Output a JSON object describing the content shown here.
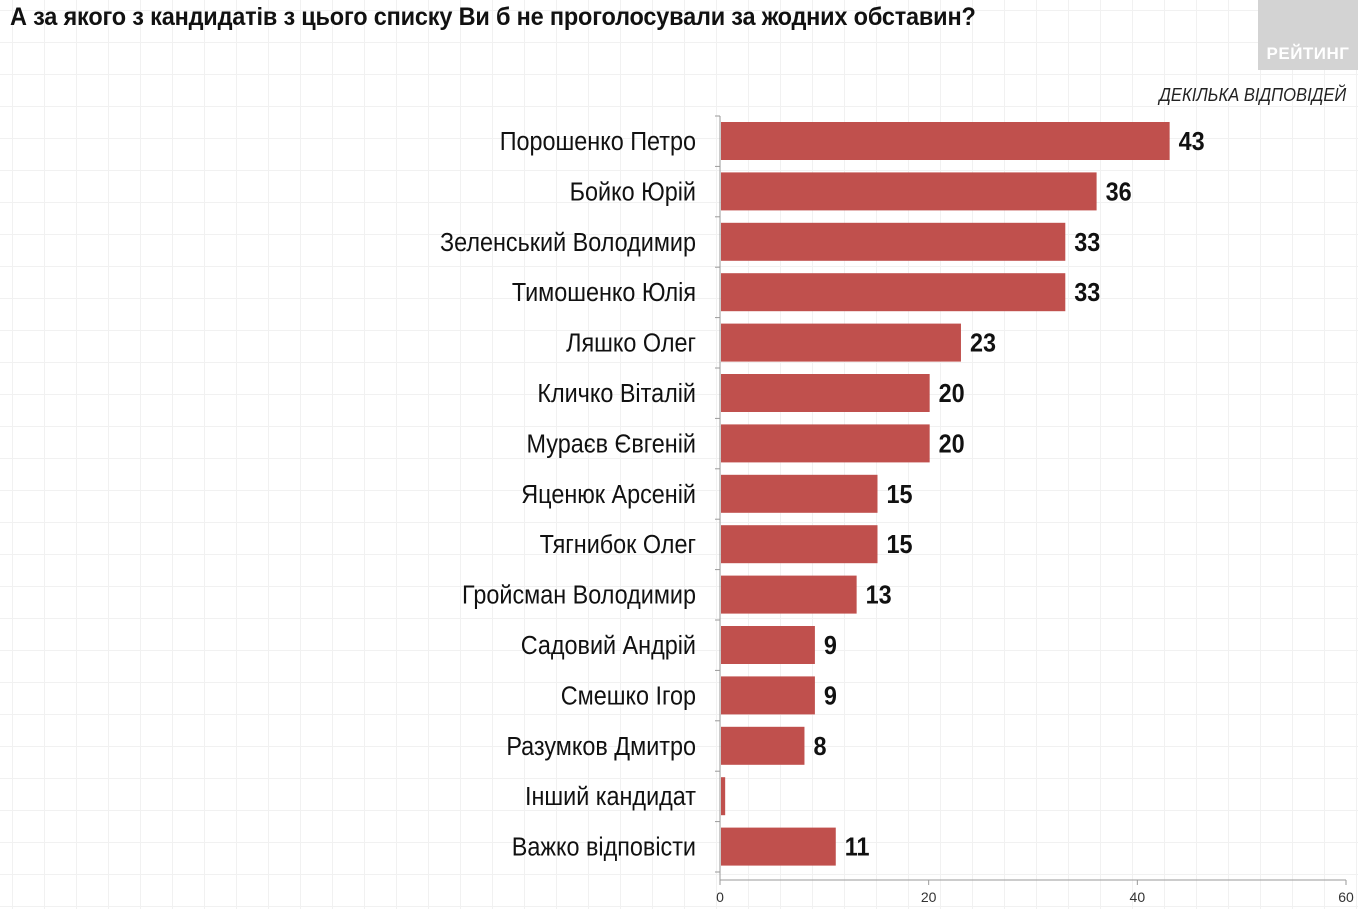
{
  "title": "А за якого з кандидатів з цього списку Ви б не проголосували за жодних обставин?",
  "logo_text": "РЕЙТИНГ",
  "note": "ДЕКІЛЬКА ВІДПОВІДЕЙ",
  "colors": {
    "bar": "#c0504d",
    "axis": "#9a9a9a",
    "text": "#111111"
  },
  "chart_data": {
    "type": "bar",
    "orientation": "horizontal",
    "title": "А за якого з кандидатів з цього списку Ви б не проголосували за жодних обставин?",
    "xlabel": "",
    "ylabel": "",
    "xlim": [
      0,
      60
    ],
    "xticks": [
      "0",
      "20",
      "40",
      "60"
    ],
    "grid": false,
    "categories": [
      "Порошенко Петро",
      "Бойко Юрій",
      "Зеленський Володимир",
      "Тимошенко Юлія",
      "Ляшко Олег",
      "Кличко Віталій",
      "Мураєв Євгеній",
      "Яценюк Арсеній",
      "Тягнибок Олег",
      "Гройсман Володимир",
      "Садовий Андрій",
      "Смешко Ігор",
      "Разумков Дмитро",
      "Інший кандидат",
      "Важко відповісти"
    ],
    "values": [
      43,
      36,
      33,
      33,
      23,
      20,
      20,
      15,
      15,
      13,
      9,
      9,
      8,
      0.4,
      11
    ],
    "data_labels": [
      "43",
      "36",
      "33",
      "33",
      "23",
      "20",
      "20",
      "15",
      "15",
      "13",
      "9",
      "9",
      "8",
      "",
      "11"
    ]
  }
}
